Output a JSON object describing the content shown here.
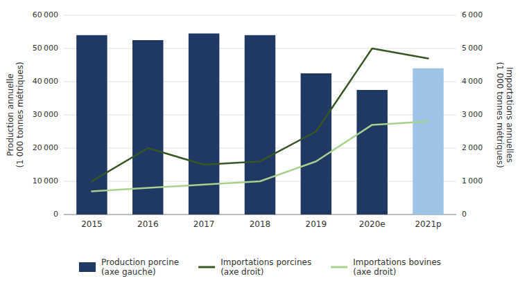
{
  "chart_data": {
    "type": "bar",
    "categories": [
      "2015",
      "2016",
      "2017",
      "2018",
      "2019",
      "2020e",
      "2021p"
    ],
    "series": [
      {
        "name": "Production porcine\n(axe gauche)",
        "type": "bar",
        "color": "#1F3864",
        "colors": [
          "#1F3864",
          "#1F3864",
          "#1F3864",
          "#1F3864",
          "#1F3864",
          "#1F3864",
          "#9DC3E6"
        ],
        "values": [
          54000,
          52500,
          54500,
          54000,
          42500,
          37500,
          44000
        ]
      },
      {
        "name": "Importations porcines\n(axe droit)",
        "type": "line",
        "axis": "y2",
        "color": "#375623",
        "values": [
          1000,
          2000,
          1500,
          1600,
          2500,
          5000,
          4700
        ]
      },
      {
        "name": "Importations bovines\n(axe droit)",
        "type": "line",
        "axis": "y2",
        "color": "#A9D18E",
        "values": [
          700,
          800,
          900,
          1000,
          1600,
          2700,
          2800
        ]
      }
    ],
    "ylabel": "Production annuelle\n(1 000 tonnes métriques)",
    "y2label": "Importations annuelles\n(1 000 tonnes métriques)",
    "ylim": [
      0,
      60000
    ],
    "yticks": [
      0,
      {
        "value": 10000,
        "label": "10 000"
      },
      {
        "value": 20000,
        "label": "20 000"
      },
      {
        "value": 30000,
        "label": "30 000"
      },
      {
        "value": 40000,
        "label": "40 000"
      },
      {
        "value": 50000,
        "label": "50 000"
      },
      {
        "value": 60000,
        "label": "60 000"
      }
    ],
    "y2lim": [
      0,
      6000
    ],
    "y2ticks": [
      0,
      {
        "value": 1000,
        "label": "1 000"
      },
      {
        "value": 2000,
        "label": "2 000"
      },
      {
        "value": 3000,
        "label": "3 000"
      },
      {
        "value": 4000,
        "label": "4 000"
      },
      {
        "value": 5000,
        "label": "5 000"
      },
      {
        "value": 6000,
        "label": "6 000"
      }
    ],
    "grid": true,
    "legend": "bottom"
  }
}
